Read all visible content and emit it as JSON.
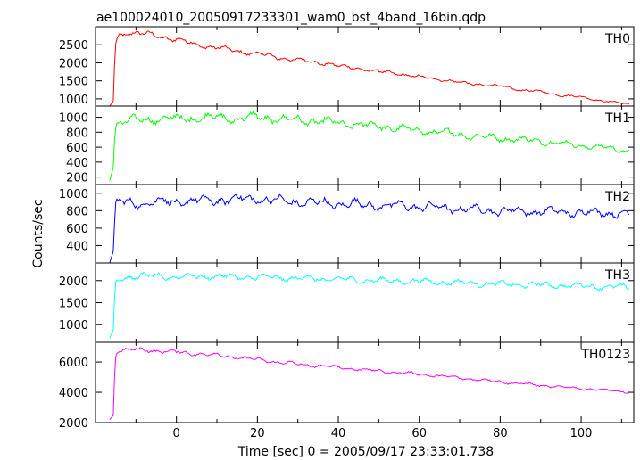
{
  "title": "ae100024010_20050917233301_wam0_bst_4band_16bin.qdp",
  "ylabel": "Counts/sec",
  "xlabel": "Time [sec] 0 = 2005/09/17 23:33:01.738",
  "chart_data": [
    {
      "type": "line",
      "series": [
        {
          "name": "TH0",
          "color": "#ff0000",
          "noise": 0.05,
          "x": [
            -16.5,
            -15.5,
            -15.2,
            -14.8,
            -14,
            -12,
            -10,
            -8,
            -5,
            0,
            5,
            10,
            15,
            20,
            25,
            30,
            35,
            38,
            40,
            45,
            50,
            55,
            60,
            65,
            70,
            75,
            80,
            85,
            90,
            95,
            100,
            105,
            110,
            112
          ],
          "y": [
            800,
            950,
            2400,
            2650,
            2750,
            2850,
            2820,
            2800,
            2750,
            2650,
            2500,
            2420,
            2320,
            2250,
            2150,
            2080,
            2000,
            1980,
            1900,
            1850,
            1750,
            1700,
            1600,
            1550,
            1450,
            1400,
            1350,
            1250,
            1200,
            1100,
            1050,
            950,
            880,
            850
          ]
        }
      ],
      "xlim": [
        -20,
        113
      ],
      "ylim": [
        800,
        3000
      ],
      "yticks": [
        1000,
        1500,
        2000,
        2500
      ],
      "xticks": [
        0,
        20,
        40,
        60,
        80,
        100
      ],
      "grid": false
    },
    {
      "type": "line",
      "series": [
        {
          "name": "TH1",
          "color": "#00ff00",
          "noise": 0.11,
          "x": [
            -16.5,
            -15.5,
            -15.2,
            -14.8,
            -14,
            -12,
            -10,
            -5,
            0,
            5,
            10,
            15,
            20,
            25,
            30,
            35,
            40,
            45,
            50,
            55,
            60,
            65,
            70,
            75,
            80,
            85,
            90,
            95,
            100,
            105,
            110,
            112
          ],
          "y": [
            150,
            350,
            850,
            920,
            930,
            950,
            960,
            980,
            980,
            990,
            1000,
            980,
            1000,
            980,
            960,
            950,
            920,
            900,
            880,
            850,
            820,
            800,
            770,
            740,
            720,
            700,
            680,
            650,
            620,
            600,
            560,
            550
          ]
        }
      ],
      "xlim": [
        -20,
        113
      ],
      "ylim": [
        100,
        1150
      ],
      "yticks": [
        200,
        400,
        600,
        800,
        1000
      ],
      "xticks": [
        0,
        20,
        40,
        60,
        80,
        100
      ],
      "grid": false
    },
    {
      "type": "line",
      "series": [
        {
          "name": "TH2",
          "color": "#0000ff",
          "noise": 0.11,
          "x": [
            -16.5,
            -15.5,
            -15.2,
            -14.8,
            -14,
            -10,
            -5,
            0,
            5,
            10,
            15,
            20,
            25,
            30,
            40,
            50,
            60,
            70,
            80,
            90,
            100,
            110,
            112
          ],
          "y": [
            200,
            350,
            800,
            880,
            900,
            880,
            900,
            900,
            910,
            920,
            930,
            940,
            910,
            900,
            880,
            860,
            850,
            820,
            800,
            790,
            780,
            770,
            760
          ]
        }
      ],
      "xlim": [
        -20,
        113
      ],
      "ylim": [
        200,
        1100
      ],
      "yticks": [
        400,
        600,
        800,
        1000
      ],
      "xticks": [
        0,
        20,
        40,
        60,
        80,
        100
      ],
      "grid": false
    },
    {
      "type": "line",
      "series": [
        {
          "name": "TH3",
          "color": "#00ffff",
          "noise": 0.06,
          "x": [
            -16.5,
            -15.5,
            -15.2,
            -14.8,
            -14,
            -10,
            -5,
            0,
            5,
            10,
            15,
            20,
            30,
            40,
            50,
            60,
            70,
            80,
            90,
            100,
            110,
            112
          ],
          "y": [
            700,
            900,
            1900,
            2000,
            2050,
            2100,
            2100,
            2080,
            2100,
            2100,
            2080,
            2080,
            2050,
            2030,
            2000,
            1980,
            1950,
            1920,
            1900,
            1880,
            1850,
            1850
          ]
        }
      ],
      "xlim": [
        -20,
        113
      ],
      "ylim": [
        600,
        2400
      ],
      "yticks": [
        1000,
        1500,
        2000
      ],
      "xticks": [
        0,
        20,
        40,
        60,
        80,
        100
      ],
      "grid": false
    },
    {
      "type": "line",
      "series": [
        {
          "name": "TH0123",
          "color": "#ff00ff",
          "noise": 0.035,
          "x": [
            -16.5,
            -15.5,
            -15.2,
            -14.8,
            -14,
            -10,
            -5,
            0,
            5,
            10,
            15,
            20,
            25,
            30,
            35,
            40,
            50,
            60,
            70,
            80,
            90,
            100,
            110,
            112
          ],
          "y": [
            2200,
            2500,
            6200,
            6700,
            6800,
            6800,
            6750,
            6650,
            6550,
            6450,
            6300,
            6150,
            6000,
            5850,
            5750,
            5650,
            5400,
            5200,
            4950,
            4700,
            4450,
            4250,
            4050,
            4000
          ]
        }
      ],
      "xlim": [
        -20,
        113
      ],
      "ylim": [
        2000,
        7300
      ],
      "yticks": [
        2000,
        4000,
        6000
      ],
      "xticks": [
        0,
        20,
        40,
        60,
        80,
        100
      ],
      "grid": false
    }
  ]
}
